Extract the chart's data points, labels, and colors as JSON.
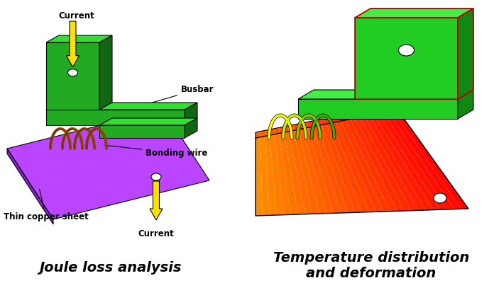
{
  "title_left": "Joule loss analysis",
  "title_right": "Temperature distribution\nand deformation",
  "label_current_top": "Current",
  "label_current_bottom": "Current",
  "label_busbar": "Busbar",
  "label_bonding": "Bonding wire",
  "label_copper": "Thin copper sheet",
  "bg_color": "#ffffff",
  "green_face": "#22AA22",
  "green_top": "#33DD33",
  "green_side": "#116611",
  "green2_face": "#22CC22",
  "green2_top": "#44EE44",
  "green2_side": "#118811",
  "purple_top": "#BB44FF",
  "purple_side": "#8822CC",
  "brown_wire": "#8B4000",
  "yellow_arr": "#FFE000",
  "title_fontsize": 13,
  "label_fontsize": 8.5
}
